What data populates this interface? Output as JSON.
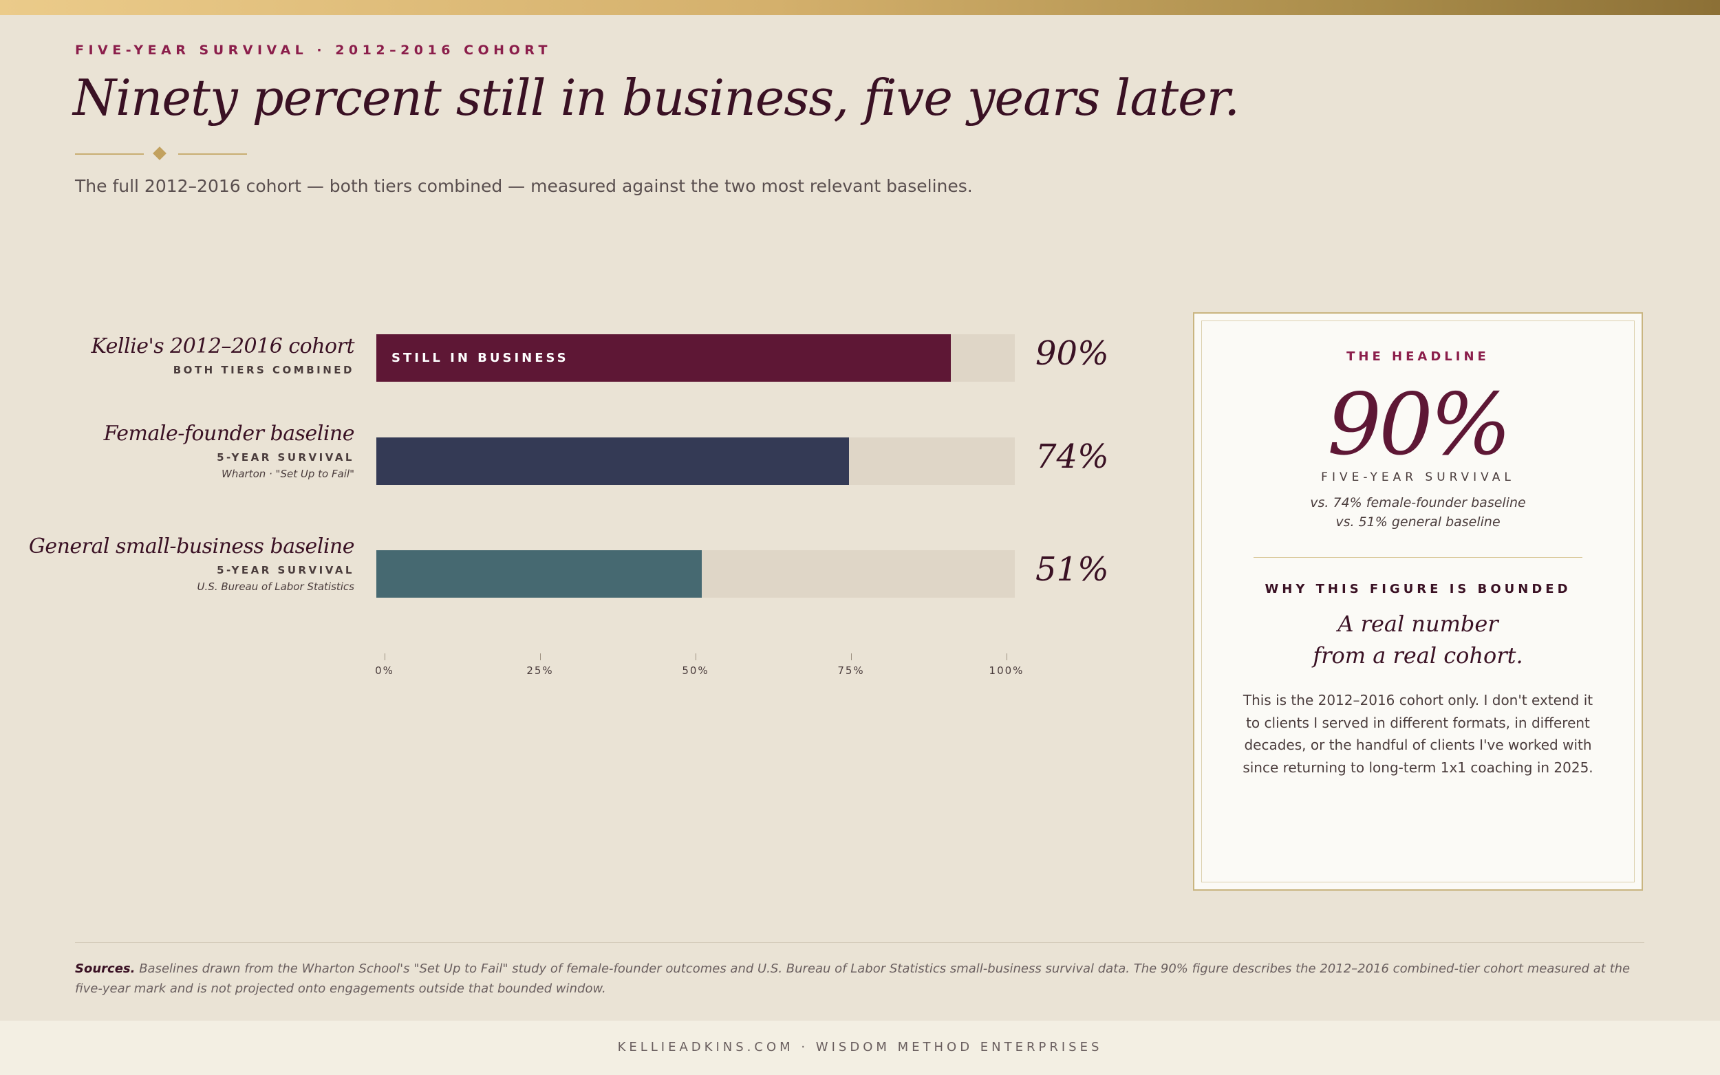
{
  "header": {
    "eyebrow": "FIVE-YEAR SURVIVAL · 2012–2016 COHORT",
    "title": "Ninety percent still in business, five years later.",
    "subtitle": "The full 2012–2016 cohort — both tiers combined — measured against the two most relevant baselines."
  },
  "chart_data": {
    "type": "bar",
    "orientation": "horizontal",
    "categories": [
      "Kellie's 2012–2016 cohort",
      "Female-founder baseline",
      "General small-business baseline"
    ],
    "values": [
      90,
      74,
      51
    ],
    "value_labels": [
      "90%",
      "74%",
      "51%"
    ],
    "xlim": [
      0,
      100
    ],
    "x_ticks": [
      "0%",
      "25%",
      "50%",
      "75%",
      "100%"
    ],
    "grid": false,
    "colors": [
      "#5E1735",
      "#343A55",
      "#466971"
    ],
    "rows": [
      {
        "name": "Kellie's 2012–2016 cohort",
        "sub": "BOTH TIERS COMBINED",
        "source": "",
        "bar_label": "STILL IN BUSINESS"
      },
      {
        "name": "Female-founder baseline",
        "sub": "5-YEAR SURVIVAL",
        "source": "Wharton · \"Set Up to Fail\"",
        "bar_label": ""
      },
      {
        "name": "General small-business baseline",
        "sub": "5-YEAR SURVIVAL",
        "source": "U.S. Bureau of Labor Statistics",
        "bar_label": ""
      }
    ]
  },
  "card": {
    "eyebrow": "THE HEADLINE",
    "big_value": "90%",
    "big_label": "FIVE-YEAR SURVIVAL",
    "vs_line1": "vs. 74% female-founder baseline",
    "vs_line2": "vs. 51% general baseline",
    "eyebrow2": "WHY THIS FIGURE IS BOUNDED",
    "quote_line1": "A real number",
    "quote_line2": "from a real cohort.",
    "body": "This is the 2012–2016 cohort only. I don't extend it to clients I served in different formats, in different decades, or the handful of clients I've worked with since returning to long-term 1x1 coaching in 2025."
  },
  "sources": {
    "lead": "Sources.",
    "text": "Baselines drawn from the Wharton School's \"Set Up to Fail\" study of female-founder outcomes and U.S. Bureau of Labor Statistics small-business survival data. The 90% figure describes the 2012–2016 combined-tier cohort measured at the five-year mark and is not projected onto engagements outside that bounded window."
  },
  "footer": {
    "text": "KELLIEADKINS.COM · WISDOM METHOD ENTERPRISES"
  }
}
